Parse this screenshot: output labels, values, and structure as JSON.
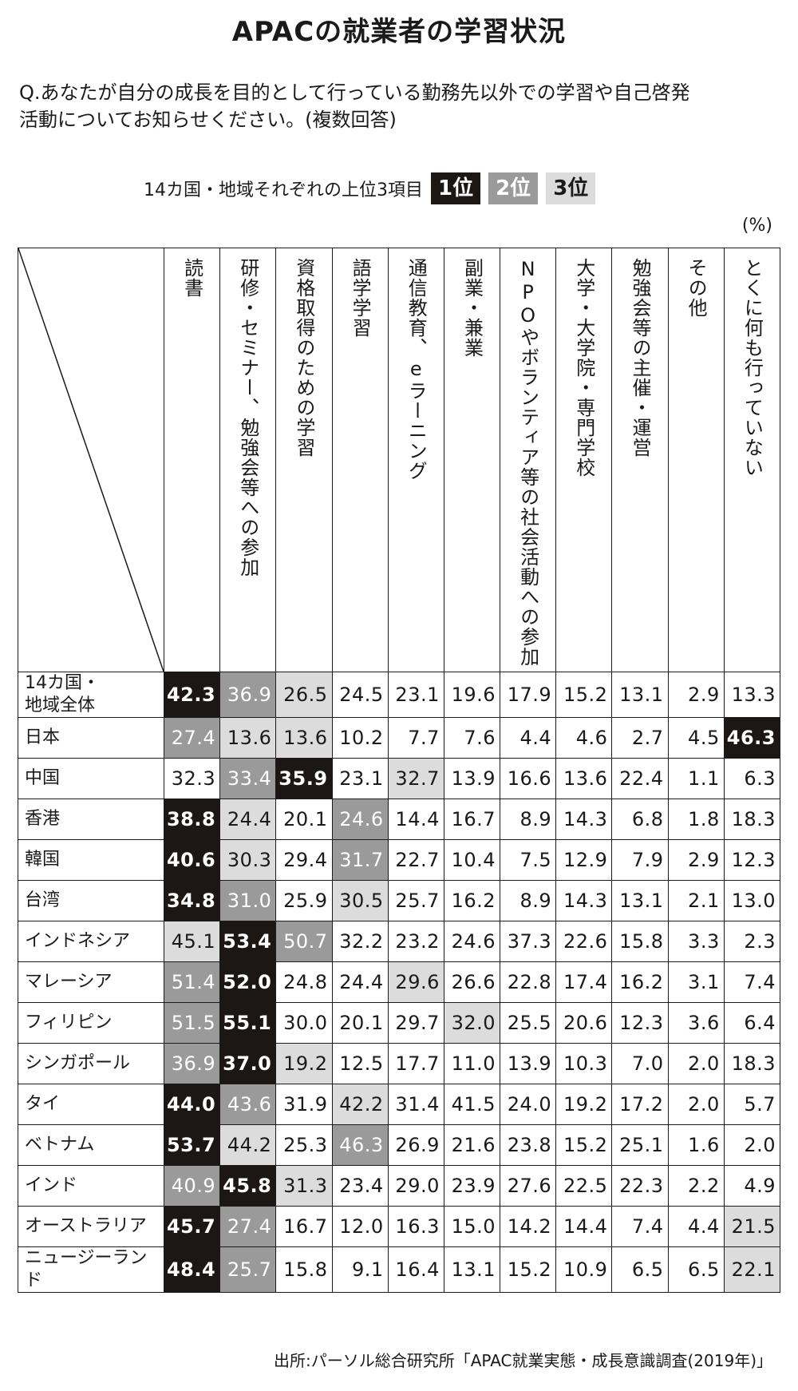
{
  "title": "APACの就業者の学習状況",
  "question": {
    "line1": "Q.あなたが自分の成長を目的として行っている勤務先以外での学習や自己啓発",
    "line2": "活動についてお知らせください。(複数回答)"
  },
  "legend": {
    "caption": "14カ国・地域それぞれの上位3項目",
    "rank1": "1位",
    "rank2": "2位",
    "rank3": "3位",
    "colors": {
      "rank1": "#1c1715",
      "rank2": "#9a9a9a",
      "rank3": "#dcdcdc"
    }
  },
  "unit": "(%)",
  "table": {
    "columns": [
      "読書",
      "研修・セミナー、勉強会等への参加",
      "資格取得のための学習",
      "語学学習",
      "通信教育、eラーニング",
      "副業・兼業",
      "NPOやボランティア等の社会活動への参加",
      "大学・大学院・専門学校",
      "勉強会等の主催・運営",
      "その他",
      "とくに何も行っていない"
    ],
    "rows": [
      {
        "label": "14カ国・\n地域全体",
        "values": [
          "42.3",
          "36.9",
          "26.5",
          "24.5",
          "23.1",
          "19.6",
          "17.9",
          "15.2",
          "13.1",
          "2.9",
          "13.3"
        ],
        "ranks": [
          1,
          2,
          3,
          0,
          0,
          0,
          0,
          0,
          0,
          0,
          0
        ]
      },
      {
        "label": "日本",
        "values": [
          "27.4",
          "13.6",
          "13.6",
          "10.2",
          "7.7",
          "7.6",
          "4.4",
          "4.6",
          "2.7",
          "4.5",
          "46.3"
        ],
        "ranks": [
          2,
          3,
          3,
          0,
          0,
          0,
          0,
          0,
          0,
          0,
          1
        ]
      },
      {
        "label": "中国",
        "values": [
          "32.3",
          "33.4",
          "35.9",
          "23.1",
          "32.7",
          "13.9",
          "16.6",
          "13.6",
          "22.4",
          "1.1",
          "6.3"
        ],
        "ranks": [
          0,
          2,
          1,
          0,
          3,
          0,
          0,
          0,
          0,
          0,
          0
        ]
      },
      {
        "label": "香港",
        "values": [
          "38.8",
          "24.4",
          "20.1",
          "24.6",
          "14.4",
          "16.7",
          "8.9",
          "14.3",
          "6.8",
          "1.8",
          "18.3"
        ],
        "ranks": [
          1,
          3,
          0,
          2,
          0,
          0,
          0,
          0,
          0,
          0,
          0
        ]
      },
      {
        "label": "韓国",
        "values": [
          "40.6",
          "30.3",
          "29.4",
          "31.7",
          "22.7",
          "10.4",
          "7.5",
          "12.9",
          "7.9",
          "2.9",
          "12.3"
        ],
        "ranks": [
          1,
          3,
          0,
          2,
          0,
          0,
          0,
          0,
          0,
          0,
          0
        ]
      },
      {
        "label": "台湾",
        "values": [
          "34.8",
          "31.0",
          "25.9",
          "30.5",
          "25.7",
          "16.2",
          "8.9",
          "14.3",
          "13.1",
          "2.1",
          "13.0"
        ],
        "ranks": [
          1,
          2,
          0,
          3,
          0,
          0,
          0,
          0,
          0,
          0,
          0
        ]
      },
      {
        "label": "インドネシア",
        "values": [
          "45.1",
          "53.4",
          "50.7",
          "32.2",
          "23.2",
          "24.6",
          "37.3",
          "22.6",
          "15.8",
          "3.3",
          "2.3"
        ],
        "ranks": [
          3,
          1,
          2,
          0,
          0,
          0,
          0,
          0,
          0,
          0,
          0
        ]
      },
      {
        "label": "マレーシア",
        "values": [
          "51.4",
          "52.0",
          "24.8",
          "24.4",
          "29.6",
          "26.6",
          "22.8",
          "17.4",
          "16.2",
          "3.1",
          "7.4"
        ],
        "ranks": [
          2,
          1,
          0,
          0,
          3,
          0,
          0,
          0,
          0,
          0,
          0
        ]
      },
      {
        "label": "フィリピン",
        "values": [
          "51.5",
          "55.1",
          "30.0",
          "20.1",
          "29.7",
          "32.0",
          "25.5",
          "20.6",
          "12.3",
          "3.6",
          "6.4"
        ],
        "ranks": [
          2,
          1,
          0,
          0,
          0,
          3,
          0,
          0,
          0,
          0,
          0
        ]
      },
      {
        "label": "シンガポール",
        "values": [
          "36.9",
          "37.0",
          "19.2",
          "12.5",
          "17.7",
          "11.0",
          "13.9",
          "10.3",
          "7.0",
          "2.0",
          "18.3"
        ],
        "ranks": [
          2,
          1,
          3,
          0,
          0,
          0,
          0,
          0,
          0,
          0,
          0
        ]
      },
      {
        "label": "タイ",
        "values": [
          "44.0",
          "43.6",
          "31.9",
          "42.2",
          "31.4",
          "41.5",
          "24.0",
          "19.2",
          "17.2",
          "2.0",
          "5.7"
        ],
        "ranks": [
          1,
          2,
          0,
          3,
          0,
          0,
          0,
          0,
          0,
          0,
          0
        ]
      },
      {
        "label": "ベトナム",
        "values": [
          "53.7",
          "44.2",
          "25.3",
          "46.3",
          "26.9",
          "21.6",
          "23.8",
          "15.2",
          "25.1",
          "1.6",
          "2.0"
        ],
        "ranks": [
          1,
          3,
          0,
          2,
          0,
          0,
          0,
          0,
          0,
          0,
          0
        ]
      },
      {
        "label": "インド",
        "values": [
          "40.9",
          "45.8",
          "31.3",
          "23.4",
          "29.0",
          "23.9",
          "27.6",
          "22.5",
          "22.3",
          "2.2",
          "4.9"
        ],
        "ranks": [
          2,
          1,
          3,
          0,
          0,
          0,
          0,
          0,
          0,
          0,
          0
        ]
      },
      {
        "label": "オーストラリア",
        "values": [
          "45.7",
          "27.4",
          "16.7",
          "12.0",
          "16.3",
          "15.0",
          "14.2",
          "14.4",
          "7.4",
          "4.4",
          "21.5"
        ],
        "ranks": [
          1,
          2,
          0,
          0,
          0,
          0,
          0,
          0,
          0,
          0,
          3
        ]
      },
      {
        "label": "ニュージーランド",
        "values": [
          "48.4",
          "25.7",
          "15.8",
          "9.1",
          "16.4",
          "13.1",
          "15.2",
          "10.9",
          "6.5",
          "6.5",
          "22.1"
        ],
        "ranks": [
          1,
          2,
          0,
          0,
          0,
          0,
          0,
          0,
          0,
          0,
          3
        ]
      }
    ]
  },
  "source": "出所:パーソル総合研究所「APAC就業実態・成長意識調査(2019年)」"
}
